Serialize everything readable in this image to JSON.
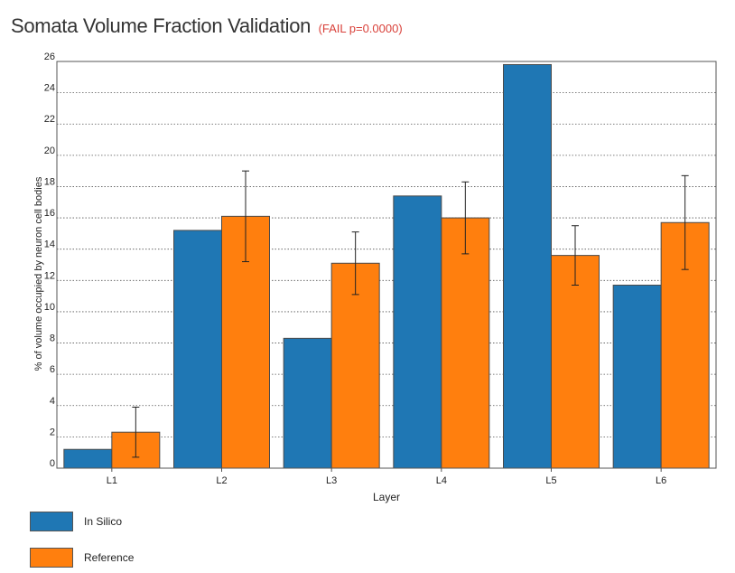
{
  "header": {
    "title": "Somata Volume Fraction Validation",
    "status": "(FAIL p=0.0000)"
  },
  "colors": {
    "in_silico": "#1f77b4",
    "reference": "#ff7f0e",
    "status": "#d9413a"
  },
  "chart_data": {
    "type": "bar",
    "xlabel": "Layer",
    "ylabel": "% of volume occupied by neuron cell bodies",
    "ylim": [
      0,
      26
    ],
    "yticks": [
      0,
      2,
      4,
      6,
      8,
      10,
      12,
      14,
      16,
      18,
      20,
      22,
      24,
      26
    ],
    "grid": "horizontal dotted",
    "categories": [
      "L1",
      "L2",
      "L3",
      "L4",
      "L5",
      "L6"
    ],
    "series": [
      {
        "name": "In Silico",
        "color": "#1f77b4",
        "values": [
          1.2,
          15.2,
          8.3,
          17.4,
          25.8,
          11.7
        ]
      },
      {
        "name": "Reference",
        "color": "#ff7f0e",
        "values": [
          2.3,
          16.1,
          13.1,
          16.0,
          13.6,
          15.7
        ],
        "error": [
          1.6,
          2.9,
          2.0,
          2.3,
          1.9,
          3.0
        ]
      }
    ]
  },
  "legend": {
    "items": [
      {
        "label": "In Silico",
        "color": "#1f77b4"
      },
      {
        "label": "Reference",
        "color": "#ff7f0e"
      }
    ]
  }
}
